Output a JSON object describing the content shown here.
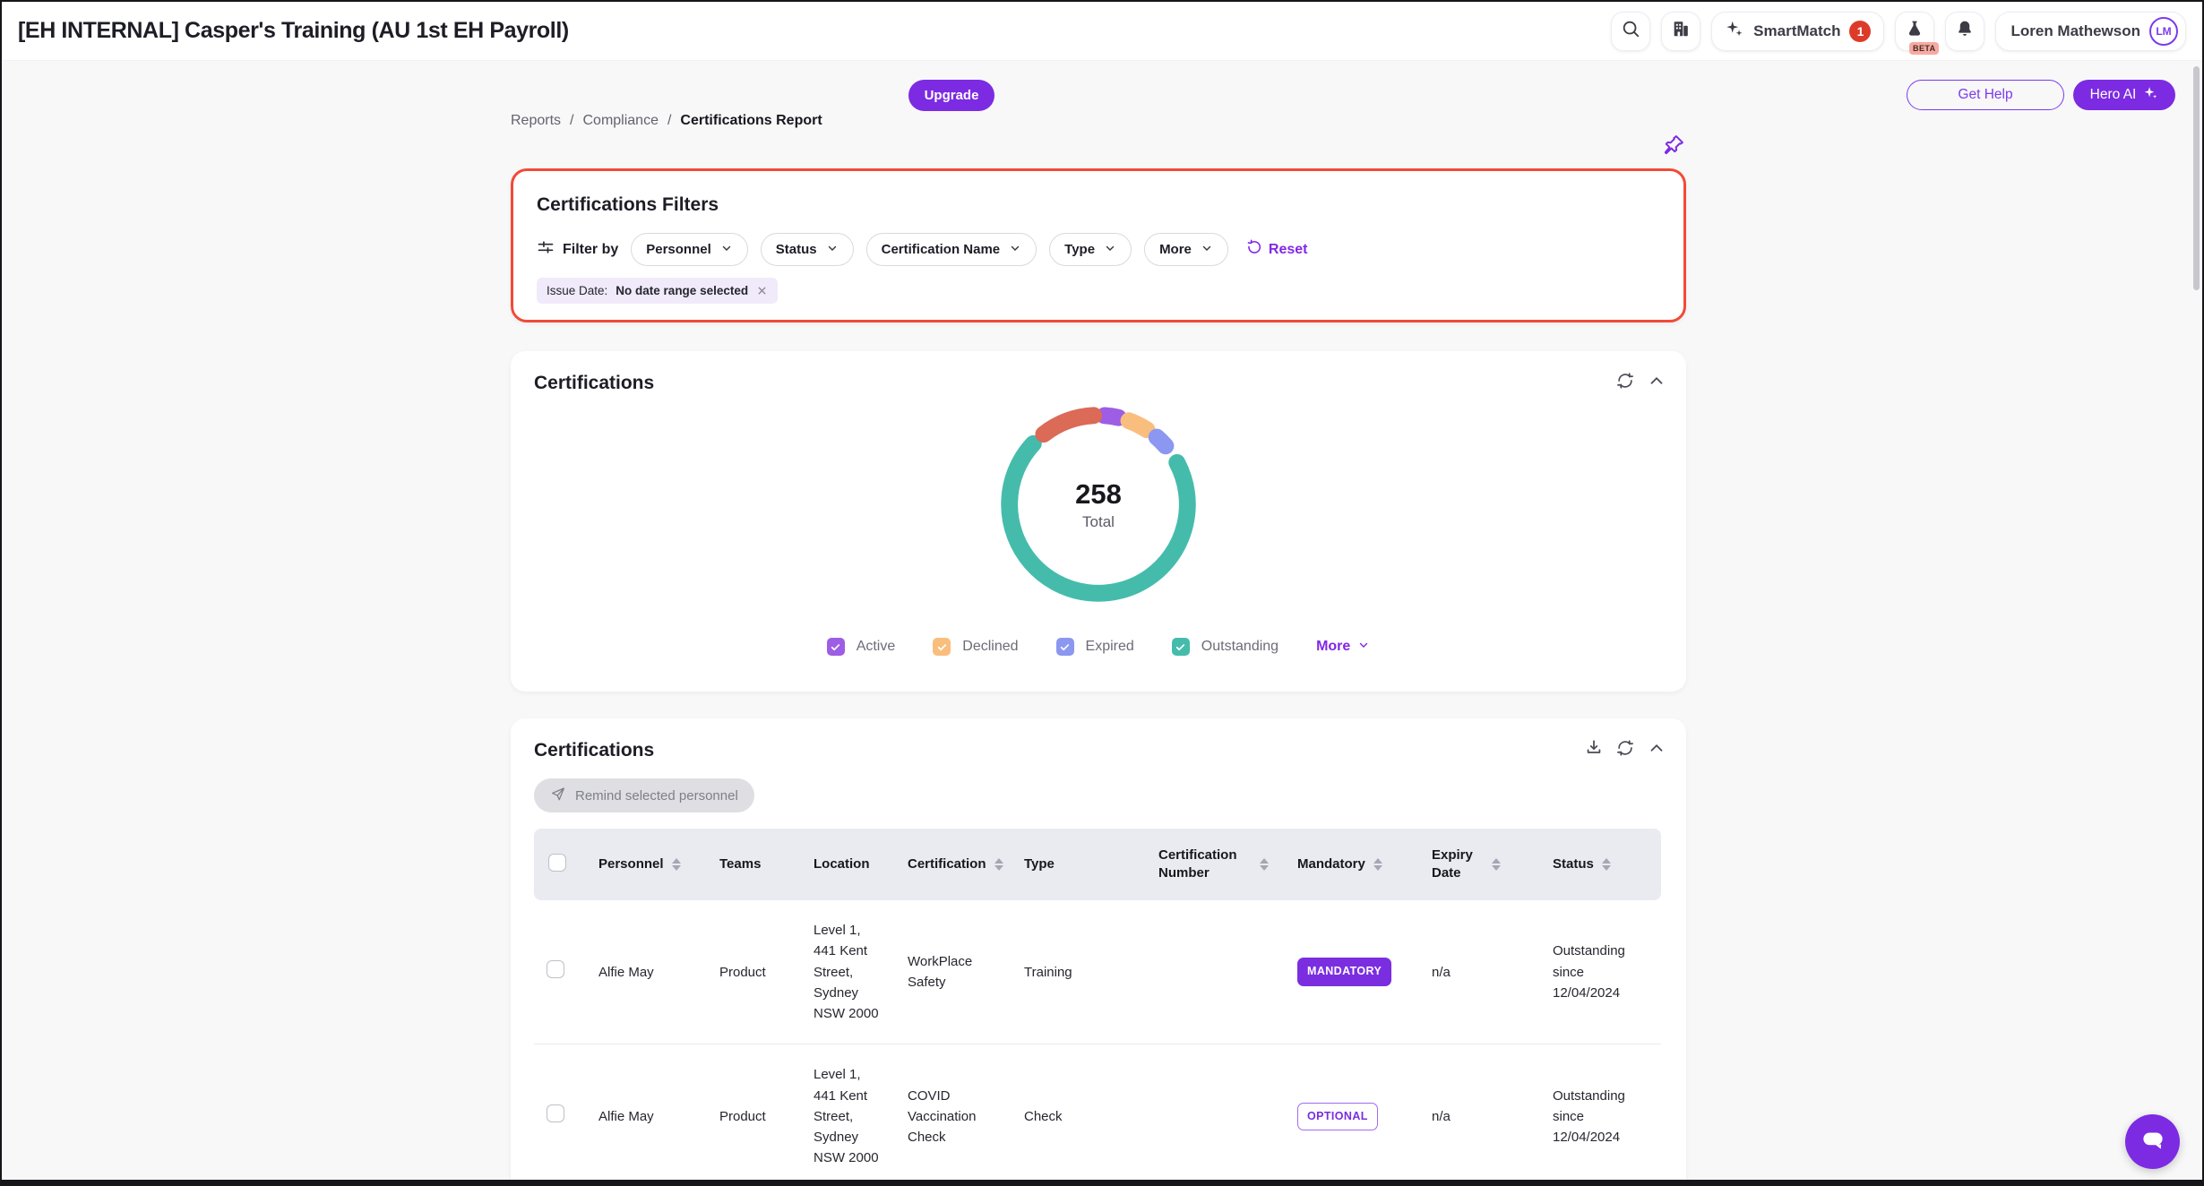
{
  "topbar": {
    "title": "[EH INTERNAL] Casper's Training (AU 1st EH Payroll)",
    "smartmatch_label": "SmartMatch",
    "smartmatch_badge": "1",
    "beta_label": "BETA",
    "user_name": "Loren Mathewson",
    "user_initials": "LM"
  },
  "page_header": {
    "upgrade_label": "Upgrade",
    "breadcrumb": [
      "Reports",
      "Compliance",
      "Certifications Report"
    ],
    "separator": "/",
    "get_help_label": "Get Help",
    "hero_ai_label": "Hero AI"
  },
  "filters": {
    "title": "Certifications Filters",
    "filter_by_label": "Filter by",
    "dropdowns": [
      "Personnel",
      "Status",
      "Certification Name",
      "Type",
      "More"
    ],
    "reset_label": "Reset",
    "issue_date_chip": {
      "label": "Issue Date:",
      "value": "No date range selected"
    }
  },
  "chart_card": {
    "title": "Certifications",
    "more_label": "More"
  },
  "chart_data": {
    "type": "pie",
    "title": "Certifications",
    "total": 258,
    "center_value": "258",
    "center_label": "Total",
    "legend_position": "bottom",
    "legend": [
      {
        "label": "Active",
        "color": "#9d5de4",
        "checked": true
      },
      {
        "label": "Declined",
        "color": "#f9be7d",
        "checked": true
      },
      {
        "label": "Expired",
        "color": "#8b97f1",
        "checked": true
      },
      {
        "label": "Outstanding",
        "color": "#45bcab",
        "checked": true
      }
    ],
    "segments": [
      {
        "label": "Active",
        "color": "#9d5de4",
        "start_deg": 4,
        "end_deg": 13,
        "approx_percent": 2.5
      },
      {
        "label": "Declined",
        "color": "#f9be7d",
        "start_deg": 20,
        "end_deg": 33,
        "approx_percent": 3.5
      },
      {
        "label": "Expired",
        "color": "#8b97f1",
        "start_deg": 41,
        "end_deg": 49,
        "approx_percent": 2
      },
      {
        "label": "Outstanding",
        "color": "#45bcab",
        "start_deg": 62,
        "end_deg": 313,
        "approx_percent": 70
      },
      {
        "label": "",
        "color": "#db6a57",
        "start_deg": 322,
        "end_deg": 357,
        "approx_percent": 10
      }
    ]
  },
  "table_card": {
    "title": "Certifications",
    "remind_button_label": "Remind selected personnel",
    "columns": [
      {
        "label": "Personnel",
        "sortable": true
      },
      {
        "label": "Teams",
        "sortable": false
      },
      {
        "label": "Location",
        "sortable": false
      },
      {
        "label": "Certification",
        "sortable": true
      },
      {
        "label": "Type",
        "sortable": false
      },
      {
        "label": "Certification Number",
        "sortable": true
      },
      {
        "label": "Mandatory",
        "sortable": true
      },
      {
        "label": "Expiry Date",
        "sortable": true
      },
      {
        "label": "Status",
        "sortable": true
      }
    ],
    "rows": [
      {
        "personnel": "Alfie May",
        "teams": "Product",
        "location": "Level 1, 441 Kent Street, Sydney NSW 2000",
        "certification": "WorkPlace Safety",
        "type": "Training",
        "certification_number": "",
        "mandatory": "MANDATORY",
        "expiry_date": "n/a",
        "status": "Outstanding since 12/04/2024"
      },
      {
        "personnel": "Alfie May",
        "teams": "Product",
        "location": "Level 1, 441 Kent Street, Sydney NSW 2000",
        "certification": "COVID Vaccination Check",
        "type": "Check",
        "certification_number": "",
        "mandatory": "OPTIONAL",
        "expiry_date": "n/a",
        "status": "Outstanding since 12/04/2024"
      }
    ]
  },
  "colors": {
    "accent_purple": "#7c2be2",
    "filters_alert_border": "#f24a38",
    "notification_badge_red": "#dd3b2a",
    "teal": "#45bcab",
    "coral": "#db6a57",
    "orange": "#f9be7d",
    "periwinkle": "#8b97f1",
    "purple_segment": "#9d5de4",
    "table_header_bg": "#e9ebf1"
  },
  "icons": {
    "search": "magnifier",
    "company": "building",
    "sparkle": "four-point-star",
    "labs": "flask",
    "notifications": "bell",
    "pin": "pushpin",
    "refresh": "circular-arrows",
    "collapse": "chevron-up",
    "download": "arrow-into-tray",
    "send": "paper-plane",
    "close": "x",
    "chevron_down": "chevron-down",
    "chat": "speech-bubble",
    "filter": "sliders",
    "reset": "rotate-arrow"
  }
}
